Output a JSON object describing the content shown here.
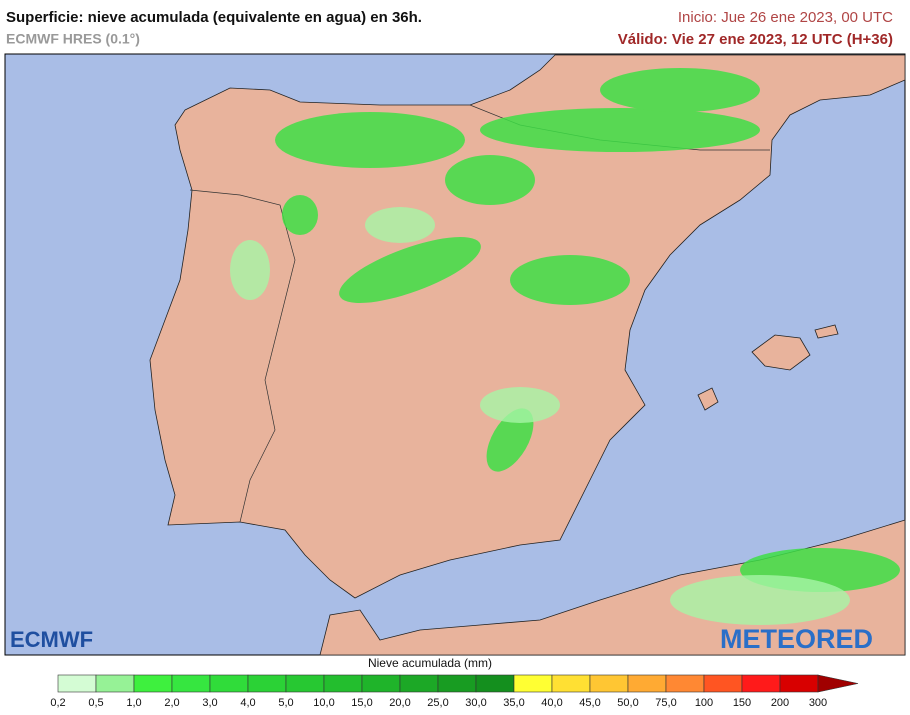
{
  "header": {
    "title": "Superficie: nieve acumulada (equivalente en agua) en 36h.",
    "model": "ECMWF HRES (0.1°)",
    "start": "Inicio: Jue 26 ene 2023, 00 UTC",
    "valid": "Válido: Vie 27 ene 2023, 12 UTC (H+36)"
  },
  "logos": {
    "left": "ECMWF",
    "right": "METEORED"
  },
  "legend": {
    "title": "Nieve acumulada (mm)",
    "labels": [
      "0,2",
      "0,5",
      "1,0",
      "2,0",
      "3,0",
      "4,0",
      "5,0",
      "10,0",
      "15,0",
      "20,0",
      "25,0",
      "30,0",
      "35,0",
      "40,0",
      "45,0",
      "50,0",
      "75,0",
      "100",
      "150",
      "200",
      "300"
    ],
    "colors": [
      "#d4fcd4",
      "#96f296",
      "#3ef03e",
      "#36e640",
      "#30dc3a",
      "#2bd236",
      "#27c832",
      "#23be2e",
      "#1fb42a",
      "#1ca826",
      "#189c22",
      "#148f1e",
      "#ffff33",
      "#ffe033",
      "#ffc633",
      "#ffaa33",
      "#ff8833",
      "#ff5522",
      "#ff1a1a",
      "#d80000",
      "#a00000"
    ]
  }
}
